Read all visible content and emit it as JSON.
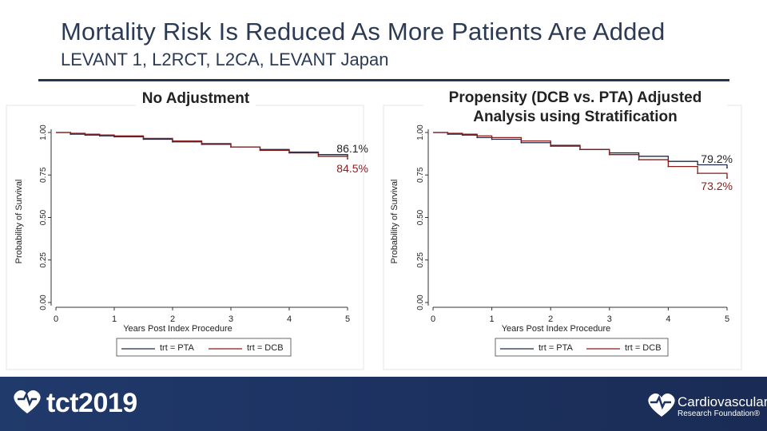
{
  "slide": {
    "title": "Mortality Risk Is Reduced As More Patients Are Added",
    "subtitle": "LEVANT 1, L2RCT, L2CA, LEVANT Japan",
    "logo_left": "tct2019",
    "logo_right_line1": "Cardiovascular",
    "logo_right_line2": "Research Foundation®"
  },
  "colors": {
    "pta": "#1f2a44",
    "dcb": "#8b1a1a",
    "title": "#2b3a55",
    "footer": "#1d3261"
  },
  "chart_data": [
    {
      "type": "line",
      "title": "No Adjustment",
      "xlabel": "Years Post Index Procedure",
      "ylabel": "Probability of Survival",
      "xlim": [
        0,
        5
      ],
      "ylim": [
        0,
        1
      ],
      "xticks": [
        "0",
        "1",
        "2",
        "3",
        "4",
        "5"
      ],
      "yticks": [
        "0.00",
        "0.25",
        "0.50",
        "0.75",
        "1.00"
      ],
      "legend": "bottom",
      "series": [
        {
          "name": "trt = PTA",
          "color": "#1f2a44",
          "x": [
            0,
            0.25,
            0.5,
            0.75,
            1,
            1.5,
            2,
            2.5,
            3,
            3.5,
            4,
            4.5,
            5
          ],
          "y": [
            1.0,
            0.99,
            0.985,
            0.98,
            0.975,
            0.96,
            0.945,
            0.93,
            0.915,
            0.9,
            0.885,
            0.87,
            0.861
          ]
        },
        {
          "name": "trt = DCB",
          "color": "#8b1a1a",
          "x": [
            0,
            0.25,
            0.5,
            0.75,
            1,
            1.5,
            2,
            2.5,
            3,
            3.5,
            4,
            4.5,
            5
          ],
          "y": [
            1.0,
            0.995,
            0.99,
            0.985,
            0.98,
            0.965,
            0.95,
            0.935,
            0.915,
            0.895,
            0.88,
            0.86,
            0.845
          ]
        }
      ],
      "annotations": [
        "86.1%",
        "84.5%"
      ]
    },
    {
      "type": "line",
      "title": "Propensity (DCB vs. PTA) Adjusted Analysis using Stratification",
      "xlabel": "Years Post Index Procedure",
      "ylabel": "Probability of Survival",
      "xlim": [
        0,
        5
      ],
      "ylim": [
        0,
        1
      ],
      "xticks": [
        "0",
        "1",
        "2",
        "3",
        "4",
        "5"
      ],
      "yticks": [
        "0.00",
        "0.25",
        "0.50",
        "0.75",
        "1.00"
      ],
      "legend": "bottom",
      "series": [
        {
          "name": "trt = PTA",
          "color": "#1f2a44",
          "x": [
            0,
            0.25,
            0.5,
            0.75,
            1,
            1.5,
            2,
            2.5,
            3,
            3.5,
            4,
            4.5,
            5
          ],
          "y": [
            1.0,
            0.99,
            0.985,
            0.97,
            0.96,
            0.94,
            0.92,
            0.9,
            0.88,
            0.86,
            0.83,
            0.81,
            0.792
          ]
        },
        {
          "name": "trt = DCB",
          "color": "#8b1a1a",
          "x": [
            0,
            0.25,
            0.5,
            0.75,
            1,
            1.5,
            2,
            2.5,
            3,
            3.5,
            4,
            4.5,
            5
          ],
          "y": [
            1.0,
            0.995,
            0.99,
            0.98,
            0.97,
            0.95,
            0.925,
            0.9,
            0.87,
            0.84,
            0.8,
            0.76,
            0.732
          ]
        }
      ],
      "annotations": [
        "79.2%",
        "73.2%"
      ]
    }
  ]
}
